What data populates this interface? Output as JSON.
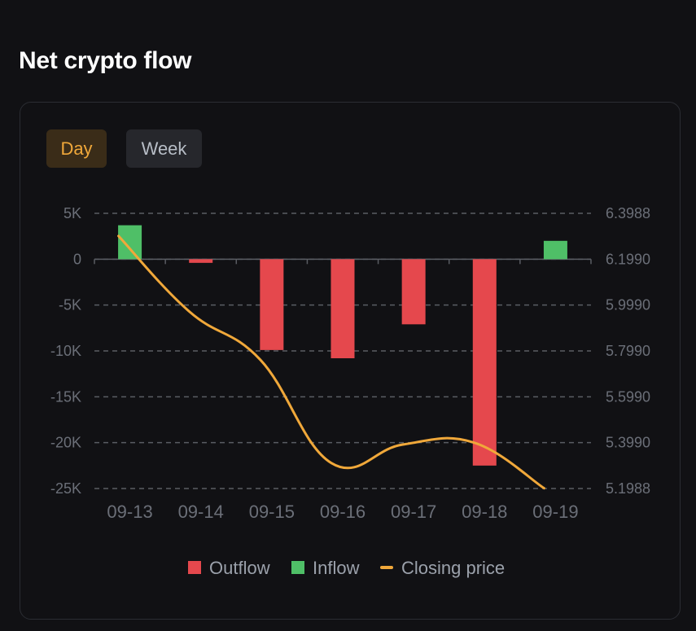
{
  "page": {
    "title": "Net crypto flow"
  },
  "tabs": [
    {
      "label": "Day",
      "active": true
    },
    {
      "label": "Week",
      "active": false
    }
  ],
  "colors": {
    "outflow": "#e5484d",
    "inflow": "#4fbf67",
    "closing_price": "#f0a83a",
    "grid": "#5a5d63",
    "axis_text": "#6b6f78"
  },
  "chart_data": {
    "type": "bar",
    "title": "Net crypto flow",
    "categories": [
      "09-13",
      "09-14",
      "09-15",
      "09-16",
      "09-17",
      "09-18",
      "09-19"
    ],
    "flow_values": [
      3700,
      -400,
      -9900,
      -10800,
      -7100,
      -22500,
      2000
    ],
    "series": [
      {
        "name": "Outflow",
        "type": "bar",
        "values": [
          0,
          -400,
          -9900,
          -10800,
          -7100,
          -22500,
          0
        ]
      },
      {
        "name": "Inflow",
        "type": "bar",
        "values": [
          3700,
          0,
          0,
          0,
          0,
          0,
          2000
        ]
      },
      {
        "name": "Closing price",
        "type": "line",
        "axis": "right",
        "values": [
          6.3,
          5.97,
          5.76,
          5.31,
          5.39,
          5.4,
          5.2
        ]
      }
    ],
    "left_axis": {
      "ylim": [
        -25000,
        5000
      ],
      "ticks": [
        5000,
        0,
        -5000,
        -10000,
        -15000,
        -20000,
        -25000
      ],
      "tick_labels": [
        "5K",
        "0",
        "-5K",
        "-10K",
        "-15K",
        "-20K",
        "-25K"
      ]
    },
    "right_axis": {
      "ylim": [
        5.1988,
        6.3988
      ],
      "ticks": [
        6.3988,
        6.199,
        5.999,
        5.799,
        5.599,
        5.399,
        5.1988
      ],
      "tick_labels": [
        "6.3988",
        "6.1990",
        "5.9990",
        "5.7990",
        "5.5990",
        "5.3990",
        "5.1988"
      ]
    },
    "legend": {
      "placement": "bottom-center",
      "items": [
        "Outflow",
        "Inflow",
        "Closing price"
      ]
    },
    "grid": true
  }
}
